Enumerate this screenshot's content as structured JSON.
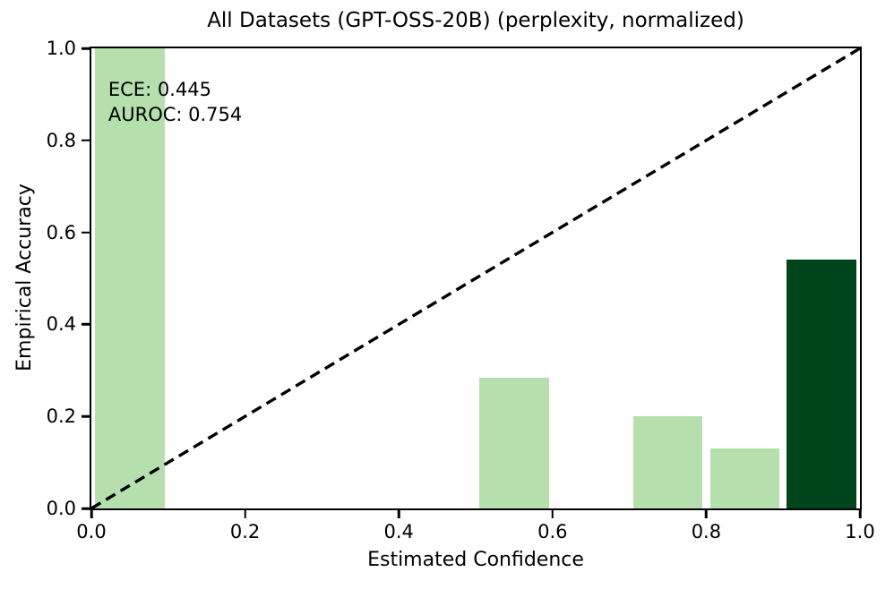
{
  "chart_data": {
    "type": "bar",
    "title": "All Datasets (GPT-OSS-20B) (perplexity, normalized)",
    "xlabel": "Estimated Confidence",
    "ylabel": "Empirical Accuracy",
    "xlim": [
      0.0,
      1.0
    ],
    "ylim": [
      0.0,
      1.0
    ],
    "x_ticks": [
      "0.0",
      "0.2",
      "0.4",
      "0.6",
      "0.8",
      "1.0"
    ],
    "y_ticks": [
      "0.0",
      "0.2",
      "0.4",
      "0.6",
      "0.8",
      "1.0"
    ],
    "grid": false,
    "legend": null,
    "bar_width": 0.09,
    "bars": [
      {
        "x": 0.05,
        "height": 1.0,
        "color": "#b5e0ad"
      },
      {
        "x": 0.55,
        "height": 0.285,
        "color": "#b5e0ad"
      },
      {
        "x": 0.75,
        "height": 0.2,
        "color": "#b5e0ad"
      },
      {
        "x": 0.85,
        "height": 0.13,
        "color": "#b5e0ad"
      },
      {
        "x": 0.95,
        "height": 0.54,
        "color": "#00441b"
      }
    ],
    "diagonal_line": {
      "from": [
        0.0,
        0.0
      ],
      "to": [
        1.0,
        1.0
      ],
      "style": "dashed",
      "color": "#000000"
    },
    "annotation": {
      "lines": [
        "ECE: 0.445",
        "AUROC: 0.754"
      ]
    },
    "colors": {
      "axis": "#000000",
      "background": "#ffffff",
      "bar_light": "#b5e0ad",
      "bar_dark": "#00441b"
    }
  }
}
